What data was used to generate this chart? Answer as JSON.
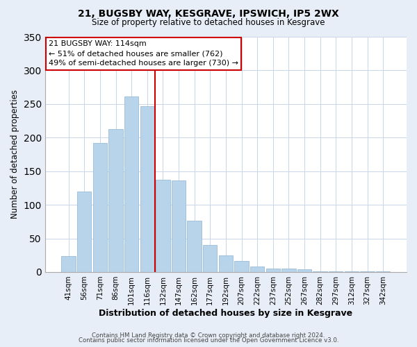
{
  "title": "21, BUGSBY WAY, KESGRAVE, IPSWICH, IP5 2WX",
  "subtitle": "Size of property relative to detached houses in Kesgrave",
  "xlabel": "Distribution of detached houses by size in Kesgrave",
  "ylabel": "Number of detached properties",
  "bar_color": "#b8d4ea",
  "bar_edge_color": "#9abcd8",
  "categories": [
    "41sqm",
    "56sqm",
    "71sqm",
    "86sqm",
    "101sqm",
    "116sqm",
    "132sqm",
    "147sqm",
    "162sqm",
    "177sqm",
    "192sqm",
    "207sqm",
    "222sqm",
    "237sqm",
    "252sqm",
    "267sqm",
    "282sqm",
    "297sqm",
    "312sqm",
    "327sqm",
    "342sqm"
  ],
  "values": [
    24,
    120,
    192,
    213,
    261,
    247,
    137,
    136,
    76,
    40,
    25,
    16,
    8,
    5,
    5,
    4,
    1,
    1,
    1,
    1,
    1
  ],
  "ylim": [
    0,
    350
  ],
  "yticks": [
    0,
    50,
    100,
    150,
    200,
    250,
    300,
    350
  ],
  "vline_color": "#cc0000",
  "annotation_title": "21 BUGSBY WAY: 114sqm",
  "annotation_line1": "← 51% of detached houses are smaller (762)",
  "annotation_line2": "49% of semi-detached houses are larger (730) →",
  "annotation_box_color": "#ffffff",
  "annotation_box_edge": "#cc0000",
  "footer1": "Contains HM Land Registry data © Crown copyright and database right 2024.",
  "footer2": "Contains public sector information licensed under the Open Government Licence v3.0.",
  "background_color": "#e8eef8",
  "plot_bg_color": "#ffffff",
  "grid_color": "#c8d4e8"
}
